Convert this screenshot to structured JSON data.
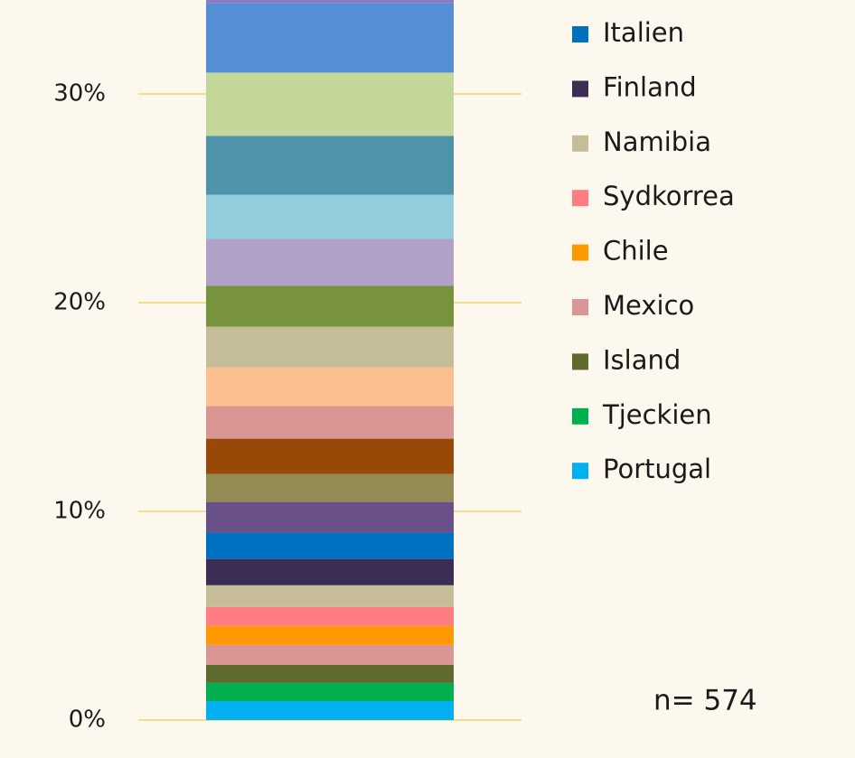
{
  "chart_data": {
    "type": "stacked-bar",
    "annotation": "n= 574",
    "ylim": [
      0,
      34.5
    ],
    "yticks": [
      {
        "value": 0,
        "label": "0%"
      },
      {
        "value": 10,
        "label": "10%"
      },
      {
        "value": 20,
        "label": "20%"
      },
      {
        "value": 30,
        "label": "30%"
      }
    ],
    "grid": true,
    "legend": "right",
    "series": [
      {
        "name": "Portugal",
        "color": "#00b0f0",
        "values": [
          0.91
        ]
      },
      {
        "name": "Tjeckien",
        "color": "#00b050",
        "values": [
          0.87
        ]
      },
      {
        "name": "Island",
        "color": "#5f6a2e",
        "values": [
          0.87
        ]
      },
      {
        "name": "Mexico",
        "color": "#d99694",
        "values": [
          0.95
        ]
      },
      {
        "name": "Chile",
        "color": "#ff9900",
        "values": [
          0.91
        ]
      },
      {
        "name": "Sydkorrea",
        "color": "#ff7c80",
        "values": [
          0.91
        ]
      },
      {
        "name": "Namibia",
        "color": "#c4bd97",
        "values": [
          1.04
        ]
      },
      {
        "name": "Finland",
        "color": "#3b2d53",
        "values": [
          1.26
        ]
      },
      {
        "name": "Italien",
        "color": "#0070c0",
        "values": [
          1.26
        ]
      },
      {
        "color": "#6a5088",
        "values": [
          1.47
        ]
      },
      {
        "color": "#948a54",
        "values": [
          1.34
        ]
      },
      {
        "color": "#984807",
        "values": [
          1.69
        ]
      },
      {
        "color": "#d99694",
        "values": [
          1.56
        ]
      },
      {
        "color": "#fac090",
        "values": [
          1.86
        ]
      },
      {
        "color": "#c4bd97",
        "values": [
          1.95
        ]
      },
      {
        "color": "#77933c",
        "values": [
          1.95
        ]
      },
      {
        "color": "#b2a1c7",
        "values": [
          2.25
        ]
      },
      {
        "color": "#93cddd",
        "values": [
          2.12
        ]
      },
      {
        "color": "#4f93ab",
        "values": [
          2.82
        ]
      },
      {
        "color": "#c4d79b",
        "values": [
          3.03
        ]
      },
      {
        "color": "#558ed5",
        "values": [
          3.34
        ]
      },
      {
        "color": "#8e7cc3",
        "values": [
          0.17
        ]
      }
    ]
  }
}
